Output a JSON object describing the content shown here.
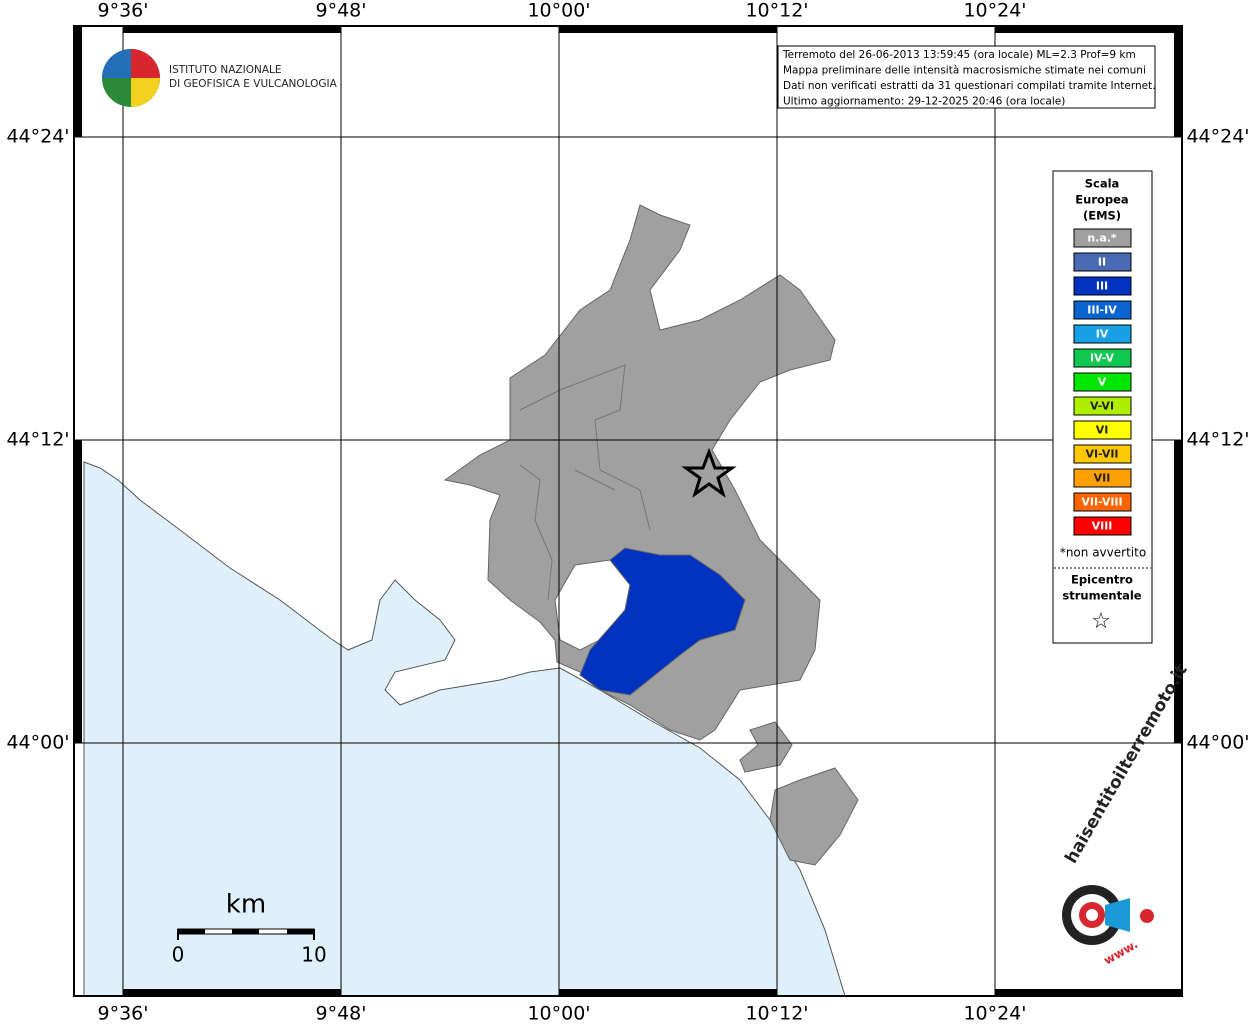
{
  "map": {
    "lon_labels": [
      "9°36'",
      "9°48'",
      "10°00'",
      "10°12'",
      "10°24'"
    ],
    "lat_labels": [
      "44°24'",
      "44°12'",
      "44°00'"
    ],
    "logo": {
      "line1": "ISTITUTO NAZIONALE",
      "line2": "DI GEOFISICA E VULCANOLOGIA"
    },
    "info": [
      "Terremoto del 26-06-2013 13:59:45 (ora locale) ML=2.3 Prof=9 km",
      "Mappa preliminare delle intensità macrosismiche stimate nei comuni",
      "Dati non verificati estratti da 31 questionari compilati tramite Internet.",
      "Ultimo aggiornamento: 29-12-2025 20:46 (ora locale)"
    ],
    "legend": {
      "title": [
        "Scala",
        "Europea",
        "(EMS)"
      ],
      "items": [
        {
          "label": "n.a.*",
          "color": "#a0a0a0"
        },
        {
          "label": "II",
          "color": "#4a6bb3"
        },
        {
          "label": "III",
          "color": "#0032c0"
        },
        {
          "label": "III-IV",
          "color": "#0a64d0"
        },
        {
          "label": "IV",
          "color": "#18a0e6"
        },
        {
          "label": "IV-V",
          "color": "#0ec850"
        },
        {
          "label": "V",
          "color": "#00e600"
        },
        {
          "label": "V-VI",
          "color": "#b0ee00"
        },
        {
          "label": "VI",
          "color": "#ffff00"
        },
        {
          "label": "VI-VII",
          "color": "#ffc800"
        },
        {
          "label": "VII",
          "color": "#ffa000"
        },
        {
          "label": "VII-VIII",
          "color": "#ff6400"
        },
        {
          "label": "VIII",
          "color": "#ff0000"
        }
      ],
      "note": "*non avvertito",
      "epicenter": [
        "Epicentro",
        "strumentale"
      ],
      "star": "☆"
    },
    "scale_bar": {
      "unit": "km",
      "start": "0",
      "end": "10"
    },
    "brand": {
      "name": "haisentitoilterremoto.it",
      "prefix": "www."
    }
  }
}
